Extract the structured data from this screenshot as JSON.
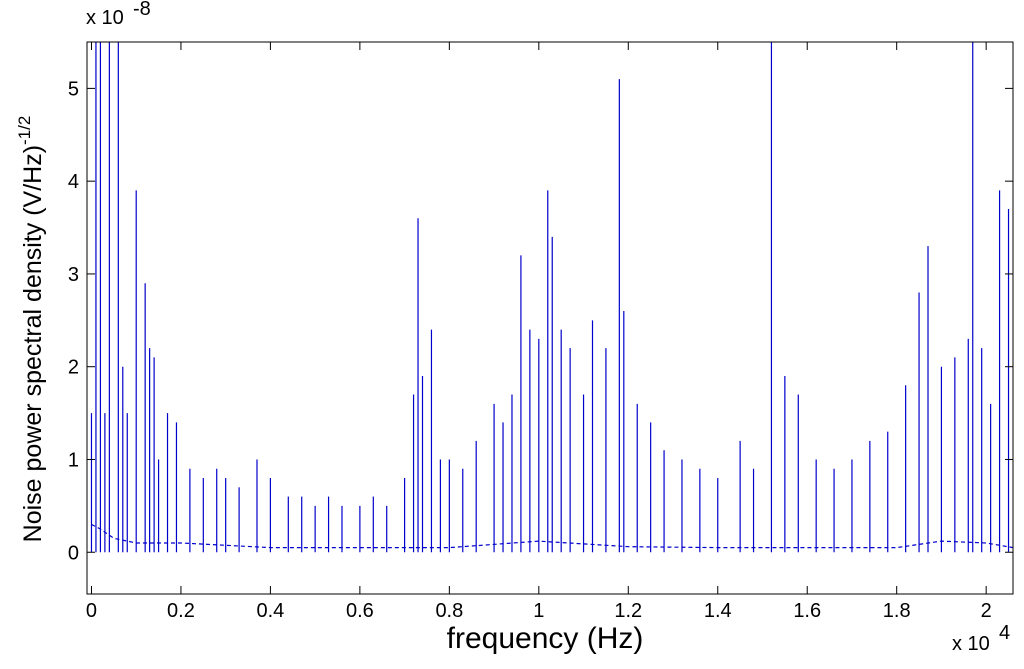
{
  "chart_data": {
    "type": "line",
    "title": "",
    "xlabel": "frequency (Hz)",
    "ylabel_main": "Noise power spectral density  (V/Hz)",
    "ylabel_exponent": "-1/2",
    "x_multiplier_label": "x 10",
    "x_multiplier_exp": "4",
    "y_multiplier_label": "x 10",
    "y_multiplier_exp": "-8",
    "xlim": [
      -0.01,
      2.06
    ],
    "ylim": [
      -0.45,
      5.5
    ],
    "x_ticks": [
      0,
      0.2,
      0.4,
      0.6,
      0.8,
      1,
      1.2,
      1.4,
      1.6,
      1.8,
      2
    ],
    "x_tick_labels": [
      "0",
      "0.2",
      "0.4",
      "0.6",
      "0.8",
      "1",
      "1.2",
      "1.4",
      "1.6",
      "1.8",
      "2"
    ],
    "y_ticks": [
      0,
      1,
      2,
      3,
      4,
      5
    ],
    "y_tick_labels": [
      "0",
      "1",
      "2",
      "3",
      "4",
      "5"
    ],
    "grid": false,
    "line_color": "#0000cc",
    "series": [
      {
        "style": "solid",
        "x": [
          0.0,
          0.01,
          0.02,
          0.03,
          0.04,
          0.06,
          0.07,
          0.08,
          0.1,
          0.12,
          0.13,
          0.14,
          0.15,
          0.17,
          0.19,
          0.22,
          0.25,
          0.28,
          0.3,
          0.33,
          0.37,
          0.4,
          0.44,
          0.47,
          0.5,
          0.53,
          0.56,
          0.6,
          0.63,
          0.66,
          0.7,
          0.72,
          0.73,
          0.74,
          0.76,
          0.78,
          0.8,
          0.83,
          0.86,
          0.9,
          0.92,
          0.94,
          0.96,
          0.98,
          1.0,
          1.02,
          1.03,
          1.05,
          1.07,
          1.1,
          1.12,
          1.15,
          1.18,
          1.19,
          1.22,
          1.25,
          1.28,
          1.32,
          1.36,
          1.4,
          1.45,
          1.48,
          1.52,
          1.55,
          1.58,
          1.62,
          1.66,
          1.7,
          1.74,
          1.78,
          1.82,
          1.85,
          1.87,
          1.9,
          1.93,
          1.96,
          1.97,
          1.99,
          2.01,
          2.03,
          2.05
        ],
        "y": [
          1.5,
          5.5,
          5.5,
          1.5,
          5.5,
          5.5,
          2.0,
          1.5,
          3.9,
          2.9,
          2.2,
          2.1,
          1.0,
          1.5,
          1.4,
          0.9,
          0.8,
          0.9,
          0.8,
          0.7,
          1.0,
          0.8,
          0.6,
          0.6,
          0.5,
          0.6,
          0.5,
          0.5,
          0.6,
          0.5,
          0.8,
          1.7,
          3.6,
          1.9,
          2.4,
          1.0,
          1.0,
          0.9,
          1.2,
          1.6,
          1.4,
          1.7,
          3.2,
          2.4,
          2.3,
          3.9,
          3.4,
          2.4,
          2.2,
          1.7,
          2.5,
          2.2,
          5.1,
          2.6,
          1.6,
          1.4,
          1.1,
          1.0,
          0.9,
          0.8,
          1.2,
          0.9,
          5.5,
          1.9,
          1.7,
          1.0,
          0.9,
          1.0,
          1.2,
          1.3,
          1.8,
          2.8,
          3.3,
          2.0,
          2.1,
          2.3,
          5.5,
          2.2,
          1.6,
          3.9,
          3.7
        ]
      },
      {
        "style": "dashed",
        "x": [
          0.0,
          0.02,
          0.05,
          0.1,
          0.2,
          0.4,
          0.6,
          0.8,
          1.0,
          1.2,
          1.4,
          1.6,
          1.8,
          1.9,
          2.0,
          2.06
        ],
        "y": [
          0.3,
          0.25,
          0.15,
          0.1,
          0.1,
          0.05,
          0.05,
          0.05,
          0.12,
          0.06,
          0.05,
          0.05,
          0.05,
          0.12,
          0.1,
          0.05
        ]
      }
    ]
  }
}
